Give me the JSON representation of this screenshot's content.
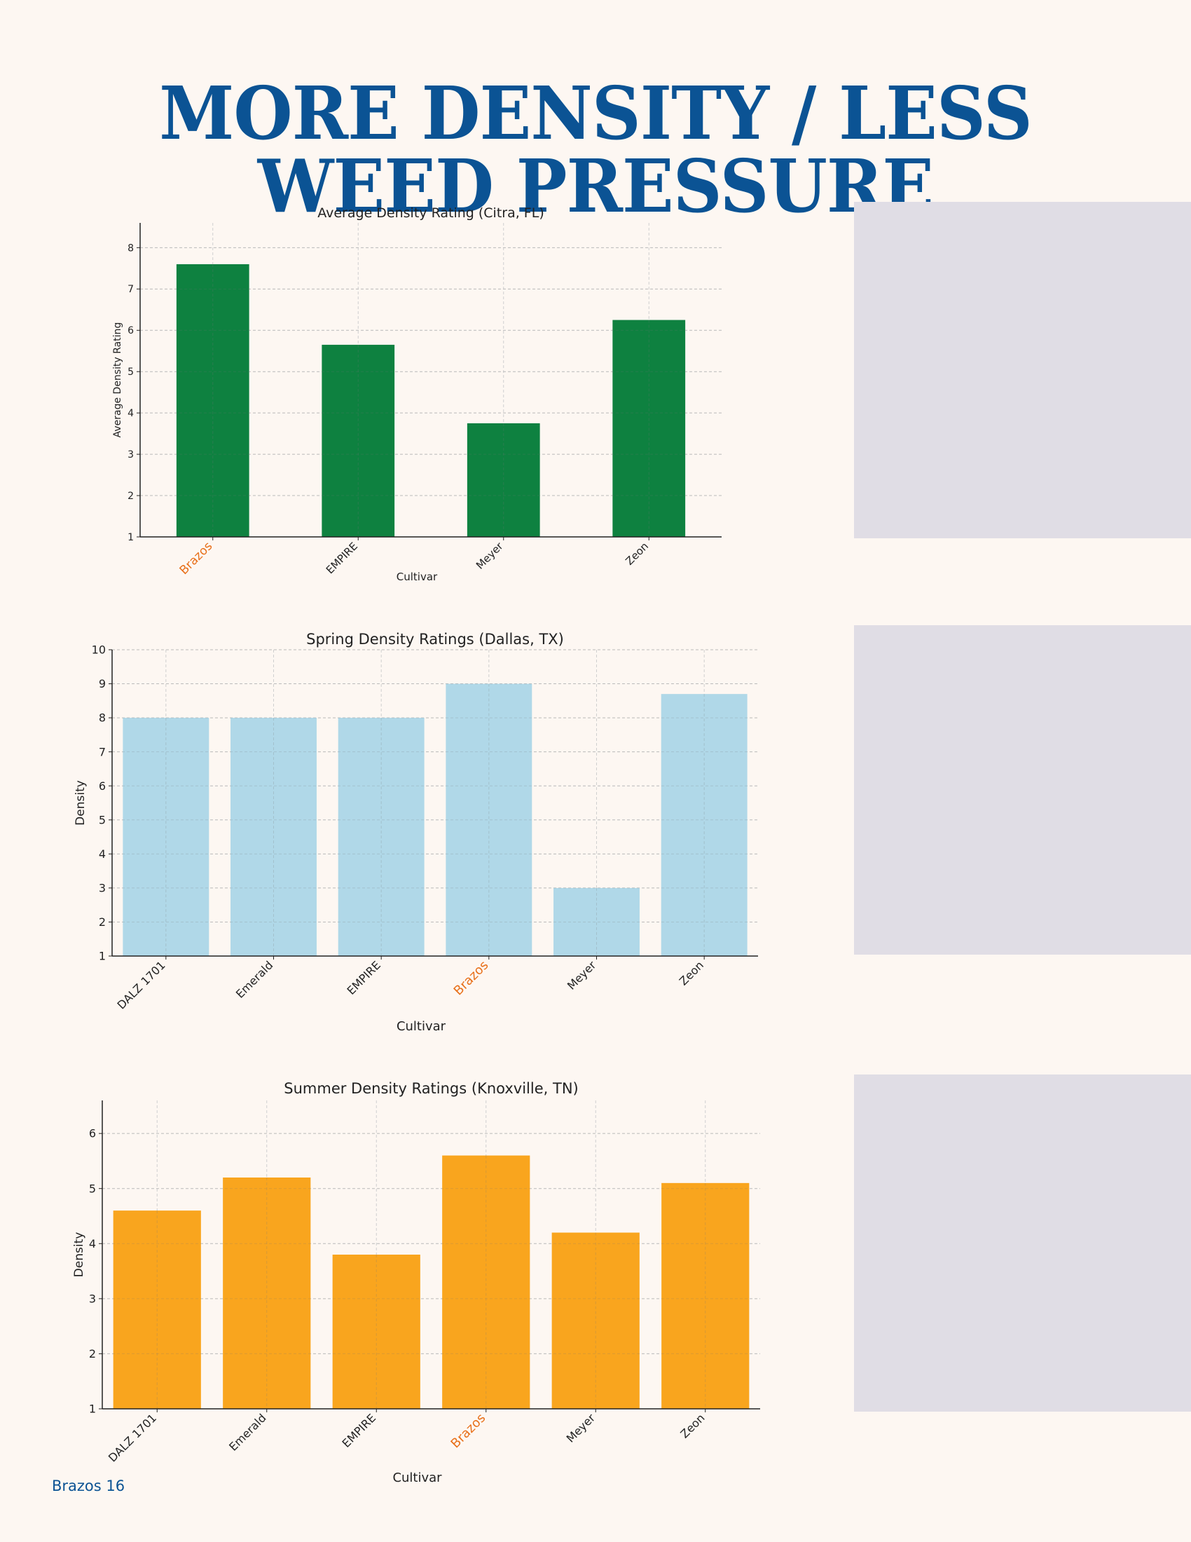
{
  "page": {
    "headline": "MORE DENSITY / LESS WEED PRESSURE",
    "footer": "Brazos 16"
  },
  "colors": {
    "headline": "#0b5394",
    "highlight_label": "#e8701a",
    "panel": "#e0dde5"
  },
  "chart_data": [
    {
      "type": "bar",
      "title": "Average Density Rating (Citra, FL)",
      "xlabel": "Cultivar",
      "ylabel": "Average Density Rating",
      "categories": [
        "Brazos",
        "EMPIRE",
        "Meyer",
        "Zeon"
      ],
      "values": [
        7.6,
        5.65,
        3.75,
        6.25
      ],
      "highlight": "Brazos",
      "ylim": [
        1,
        8.6
      ],
      "yticks": [
        1,
        2,
        3,
        4,
        5,
        6,
        7,
        8
      ],
      "color": "#0e8140",
      "grid": true
    },
    {
      "type": "bar",
      "title": "Spring Density Ratings (Dallas, TX)",
      "xlabel": "Cultivar",
      "ylabel": "Density",
      "categories": [
        "DALZ 1701",
        "Emerald",
        "EMPIRE",
        "Brazos",
        "Meyer",
        "Zeon"
      ],
      "values": [
        8,
        8,
        8,
        9,
        3,
        8.7
      ],
      "highlight": "Brazos",
      "ylim": [
        1,
        10
      ],
      "yticks": [
        1,
        2,
        3,
        4,
        5,
        6,
        7,
        8,
        9,
        10
      ],
      "color": "#b0d8e8",
      "grid": true
    },
    {
      "type": "bar",
      "title": "Summer Density Ratings (Knoxville, TN)",
      "xlabel": "Cultivar",
      "ylabel": "Density",
      "categories": [
        "DALZ 1701",
        "Emerald",
        "EMPIRE",
        "Brazos",
        "Meyer",
        "Zeon"
      ],
      "values": [
        4.6,
        5.2,
        3.8,
        5.6,
        4.2,
        5.1
      ],
      "highlight": "Brazos",
      "ylim": [
        1,
        6.6
      ],
      "yticks": [
        1,
        2,
        3,
        4,
        5,
        6
      ],
      "color": "#f9a51e",
      "grid": true
    }
  ]
}
